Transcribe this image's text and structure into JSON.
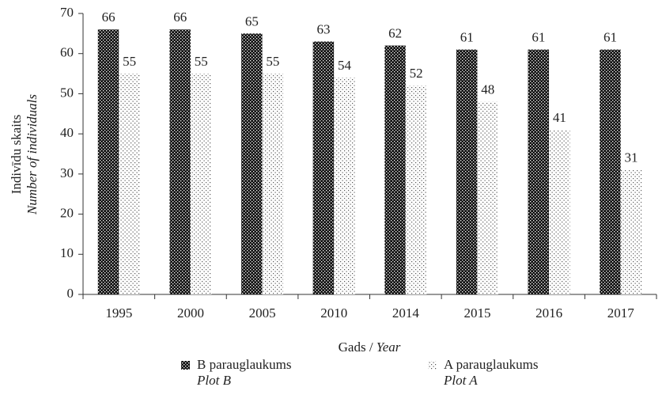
{
  "chart_data": {
    "type": "bar",
    "ylabel": {
      "text": "Indivīdu skaits",
      "italic": "Number of individuals"
    },
    "xlabel": {
      "text": "Gads /",
      "italic": "Year"
    },
    "categories": [
      "1995",
      "2000",
      "2005",
      "2010",
      "2014",
      "2015",
      "2016",
      "2017"
    ],
    "series": [
      {
        "name": "B parauglaukums",
        "name_italic": "Plot B",
        "color": "#111111",
        "values": [
          66,
          66,
          65,
          63,
          62,
          61,
          61,
          61
        ]
      },
      {
        "name": "A parauglaukums",
        "name_italic": "Plot A",
        "color": "#555555",
        "values": [
          55,
          55,
          55,
          54,
          52,
          48,
          41,
          31
        ]
      }
    ],
    "ylim": [
      0,
      70
    ],
    "yticks": [
      0,
      10,
      20,
      30,
      40,
      50,
      60,
      70
    ]
  }
}
